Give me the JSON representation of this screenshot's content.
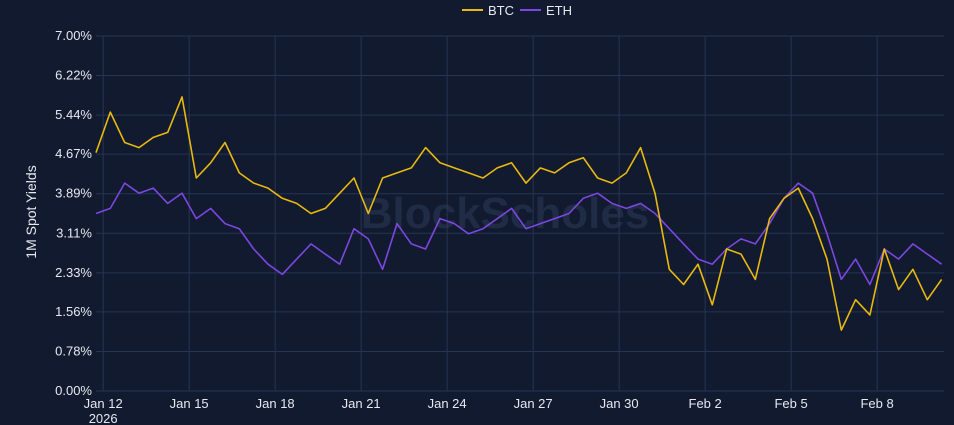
{
  "chart_data": {
    "type": "line",
    "ylabel": "1M Spot Yields",
    "xlabel": "",
    "title": "",
    "watermark": "BlockScholes",
    "ylim": [
      0,
      7
    ],
    "y_ticks": [
      "0.00%",
      "0.78%",
      "1.56%",
      "2.33%",
      "3.11%",
      "3.89%",
      "4.67%",
      "5.44%",
      "6.22%",
      "7.00%"
    ],
    "y_tick_values": [
      0,
      0.78,
      1.56,
      2.33,
      3.11,
      3.89,
      4.67,
      5.44,
      6.22,
      7.0
    ],
    "x_range": [
      "2026-01-11T18:00",
      "2026-02-10T08:00"
    ],
    "x_ticks": [
      {
        "label": "Jan 12",
        "sub": "2026",
        "date": "2026-01-12"
      },
      {
        "label": "Jan 15",
        "date": "2026-01-15"
      },
      {
        "label": "Jan 18",
        "date": "2026-01-18"
      },
      {
        "label": "Jan 21",
        "date": "2026-01-21"
      },
      {
        "label": "Jan 24",
        "date": "2026-01-24"
      },
      {
        "label": "Jan 27",
        "date": "2026-01-27"
      },
      {
        "label": "Jan 30",
        "date": "2026-01-30"
      },
      {
        "label": "Feb 2",
        "date": "2026-02-02"
      },
      {
        "label": "Feb 5",
        "date": "2026-02-05"
      },
      {
        "label": "Feb 8",
        "date": "2026-02-08"
      }
    ],
    "legend_position": "top-center",
    "grid": true,
    "series": [
      {
        "name": "BTC",
        "color": "#e8b90f",
        "x": [
          "2026-01-11T18:00",
          "2026-01-12T06:00",
          "2026-01-12T18:00",
          "2026-01-13T06:00",
          "2026-01-13T18:00",
          "2026-01-14T06:00",
          "2026-01-14T18:00",
          "2026-01-15T06:00",
          "2026-01-15T18:00",
          "2026-01-16T06:00",
          "2026-01-16T18:00",
          "2026-01-17T06:00",
          "2026-01-17T18:00",
          "2026-01-18T06:00",
          "2026-01-18T18:00",
          "2026-01-19T06:00",
          "2026-01-19T18:00",
          "2026-01-20T06:00",
          "2026-01-20T18:00",
          "2026-01-21T06:00",
          "2026-01-21T18:00",
          "2026-01-22T06:00",
          "2026-01-22T18:00",
          "2026-01-23T06:00",
          "2026-01-23T18:00",
          "2026-01-24T06:00",
          "2026-01-24T18:00",
          "2026-01-25T06:00",
          "2026-01-25T18:00",
          "2026-01-26T06:00",
          "2026-01-26T18:00",
          "2026-01-27T06:00",
          "2026-01-27T18:00",
          "2026-01-28T06:00",
          "2026-01-28T18:00",
          "2026-01-29T06:00",
          "2026-01-29T18:00",
          "2026-01-30T06:00",
          "2026-01-30T18:00",
          "2026-01-31T06:00",
          "2026-01-31T18:00",
          "2026-02-01T06:00",
          "2026-02-01T18:00",
          "2026-02-02T06:00",
          "2026-02-02T18:00",
          "2026-02-03T06:00",
          "2026-02-03T18:00",
          "2026-02-04T06:00",
          "2026-02-04T18:00",
          "2026-02-05T06:00",
          "2026-02-05T18:00",
          "2026-02-06T06:00",
          "2026-02-06T18:00",
          "2026-02-07T06:00",
          "2026-02-07T18:00",
          "2026-02-08T06:00",
          "2026-02-08T18:00",
          "2026-02-09T06:00",
          "2026-02-09T18:00",
          "2026-02-10T06:00"
        ],
        "y": [
          4.7,
          5.5,
          4.9,
          4.8,
          5.0,
          5.1,
          5.8,
          4.2,
          4.5,
          4.9,
          4.3,
          4.1,
          4.0,
          3.8,
          3.7,
          3.5,
          3.6,
          3.9,
          4.2,
          3.5,
          4.2,
          4.3,
          4.4,
          4.8,
          4.5,
          4.4,
          4.3,
          4.2,
          4.4,
          4.5,
          4.1,
          4.4,
          4.3,
          4.5,
          4.6,
          4.2,
          4.1,
          4.3,
          4.8,
          3.9,
          2.4,
          2.1,
          2.5,
          1.7,
          2.8,
          2.7,
          2.2,
          3.4,
          3.8,
          4.0,
          3.4,
          2.6,
          1.2,
          1.8,
          1.5,
          2.8,
          2.0,
          2.4,
          1.8,
          2.2
        ]
      },
      {
        "name": "ETH",
        "color": "#7b47e0",
        "x": [
          "2026-01-11T18:00",
          "2026-01-12T06:00",
          "2026-01-12T18:00",
          "2026-01-13T06:00",
          "2026-01-13T18:00",
          "2026-01-14T06:00",
          "2026-01-14T18:00",
          "2026-01-15T06:00",
          "2026-01-15T18:00",
          "2026-01-16T06:00",
          "2026-01-16T18:00",
          "2026-01-17T06:00",
          "2026-01-17T18:00",
          "2026-01-18T06:00",
          "2026-01-18T18:00",
          "2026-01-19T06:00",
          "2026-01-19T18:00",
          "2026-01-20T06:00",
          "2026-01-20T18:00",
          "2026-01-21T06:00",
          "2026-01-21T18:00",
          "2026-01-22T06:00",
          "2026-01-22T18:00",
          "2026-01-23T06:00",
          "2026-01-23T18:00",
          "2026-01-24T06:00",
          "2026-01-24T18:00",
          "2026-01-25T06:00",
          "2026-01-25T18:00",
          "2026-01-26T06:00",
          "2026-01-26T18:00",
          "2026-01-27T06:00",
          "2026-01-27T18:00",
          "2026-01-28T06:00",
          "2026-01-28T18:00",
          "2026-01-29T06:00",
          "2026-01-29T18:00",
          "2026-01-30T06:00",
          "2026-01-30T18:00",
          "2026-01-31T06:00",
          "2026-01-31T18:00",
          "2026-02-01T06:00",
          "2026-02-01T18:00",
          "2026-02-02T06:00",
          "2026-02-02T18:00",
          "2026-02-03T06:00",
          "2026-02-03T18:00",
          "2026-02-04T06:00",
          "2026-02-04T18:00",
          "2026-02-05T06:00",
          "2026-02-05T18:00",
          "2026-02-06T06:00",
          "2026-02-06T18:00",
          "2026-02-07T06:00",
          "2026-02-07T18:00",
          "2026-02-08T06:00",
          "2026-02-08T18:00",
          "2026-02-09T06:00",
          "2026-02-09T18:00",
          "2026-02-10T06:00"
        ],
        "y": [
          3.5,
          3.6,
          4.1,
          3.9,
          4.0,
          3.7,
          3.9,
          3.4,
          3.6,
          3.3,
          3.2,
          2.8,
          2.5,
          2.3,
          2.6,
          2.9,
          2.7,
          2.5,
          3.2,
          3.0,
          2.4,
          3.3,
          2.9,
          2.8,
          3.4,
          3.3,
          3.1,
          3.2,
          3.4,
          3.6,
          3.2,
          3.3,
          3.4,
          3.5,
          3.8,
          3.9,
          3.7,
          3.6,
          3.7,
          3.5,
          3.2,
          2.9,
          2.6,
          2.5,
          2.8,
          3.0,
          2.9,
          3.3,
          3.8,
          4.1,
          3.9,
          3.1,
          2.2,
          2.6,
          2.1,
          2.8,
          2.6,
          2.9,
          2.7,
          2.5
        ]
      }
    ]
  }
}
